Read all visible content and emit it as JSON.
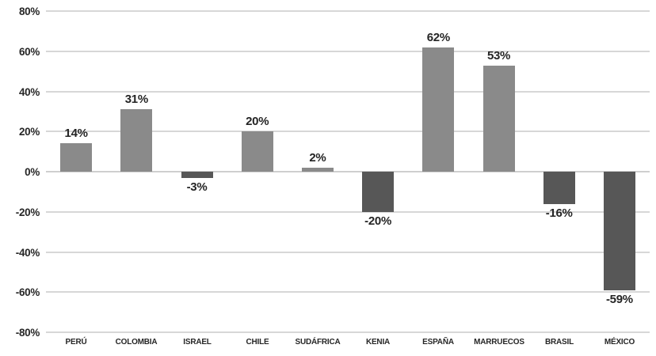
{
  "chart_data": {
    "type": "bar",
    "categories": [
      "PERÚ",
      "COLOMBIA",
      "ISRAEL",
      "CHILE",
      "SUDÁFRICA",
      "KENIA",
      "ESPAÑA",
      "MARRUECOS",
      "BRASIL",
      "MÉXICO"
    ],
    "values": [
      14,
      31,
      -3,
      20,
      2,
      -20,
      62,
      53,
      -16,
      -59
    ],
    "value_labels": [
      "14%",
      "31%",
      "-3%",
      "20%",
      "2%",
      "-20%",
      "62%",
      "53%",
      "-16%",
      "-59%"
    ],
    "title": "",
    "xlabel": "",
    "ylabel": "",
    "ylim": [
      -80,
      80
    ],
    "ytick_step": 20,
    "ytick_labels": [
      "80%",
      "60%",
      "40%",
      "20%",
      "0%",
      "-20%",
      "-40%",
      "-60%",
      "-80%"
    ],
    "grid": true,
    "legend_position": "none",
    "colors": {
      "positive_bar": "#8a8a8a",
      "negative_bar": "#575757",
      "gridline": "#d7d7d7",
      "zero_line": "#cfcfcf",
      "tick_text": "#262626",
      "value_text": "#242424",
      "background": "#ffffff"
    }
  }
}
